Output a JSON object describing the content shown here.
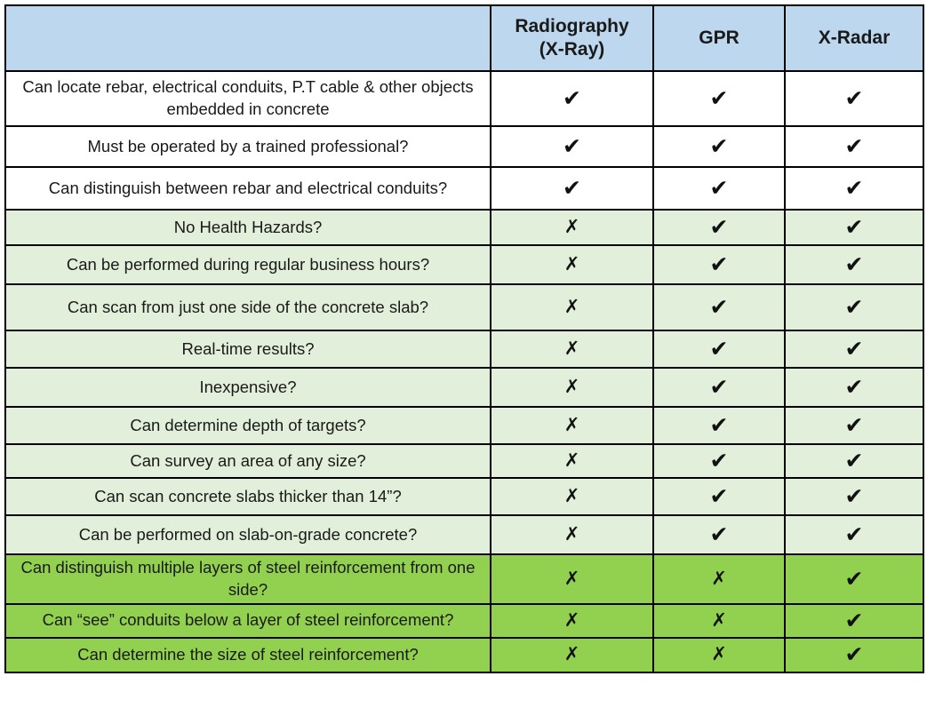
{
  "colors": {
    "header_bg": "#BDD7EE",
    "row_white": "#FFFFFF",
    "row_light_green": "#E2EFDA",
    "row_dark_green": "#92D050",
    "border": "#000000"
  },
  "marks": {
    "check": "✔",
    "cross": "✗"
  },
  "chart_data": {
    "type": "table",
    "columns": [
      "",
      "Radiography\n(X-Ray)",
      "GPR",
      "X-Radar"
    ],
    "column_keys": [
      "feature",
      "radiography",
      "gpr",
      "x-radar"
    ],
    "rows": [
      {
        "feature": "Can locate rebar, electrical conduits, P.T cable & other objects embedded in concrete",
        "tone": "white",
        "values": [
          "check",
          "check",
          "check"
        ]
      },
      {
        "feature": "Must be operated by a trained professional?",
        "tone": "white",
        "values": [
          "check",
          "check",
          "check"
        ]
      },
      {
        "feature": "Can distinguish between rebar and electrical conduits?",
        "tone": "white",
        "values": [
          "check",
          "check",
          "check"
        ]
      },
      {
        "feature": "No Health Hazards?",
        "tone": "light-green",
        "values": [
          "cross",
          "check",
          "check"
        ]
      },
      {
        "feature": "Can be performed during regular business hours?",
        "tone": "light-green",
        "values": [
          "cross",
          "check",
          "check"
        ]
      },
      {
        "feature": "Can scan from just one side of the concrete slab?",
        "tone": "light-green",
        "values": [
          "cross",
          "check",
          "check"
        ]
      },
      {
        "feature": "Real-time results?",
        "tone": "light-green",
        "values": [
          "cross",
          "check",
          "check"
        ]
      },
      {
        "feature": "Inexpensive?",
        "tone": "light-green",
        "values": [
          "cross",
          "check",
          "check"
        ]
      },
      {
        "feature": "Can determine depth of targets?",
        "tone": "light-green",
        "values": [
          "cross",
          "check",
          "check"
        ]
      },
      {
        "feature": "Can survey an area of any size?",
        "tone": "light-green",
        "values": [
          "cross",
          "check",
          "check"
        ]
      },
      {
        "feature": "Can scan concrete slabs thicker than 14”?",
        "tone": "light-green",
        "values": [
          "cross",
          "check",
          "check"
        ]
      },
      {
        "feature": "Can be performed on slab-on-grade concrete?",
        "tone": "light-green",
        "values": [
          "cross",
          "check",
          "check"
        ]
      },
      {
        "feature": "Can distinguish multiple layers of steel reinforcement from one side?",
        "tone": "dark-green",
        "values": [
          "cross",
          "cross",
          "check"
        ]
      },
      {
        "feature": "Can “see” conduits below a layer of steel reinforcement?",
        "tone": "dark-green",
        "values": [
          "cross",
          "cross",
          "check"
        ]
      },
      {
        "feature": "Can determine the size of steel reinforcement?",
        "tone": "dark-green",
        "values": [
          "cross",
          "cross",
          "check"
        ]
      }
    ]
  }
}
